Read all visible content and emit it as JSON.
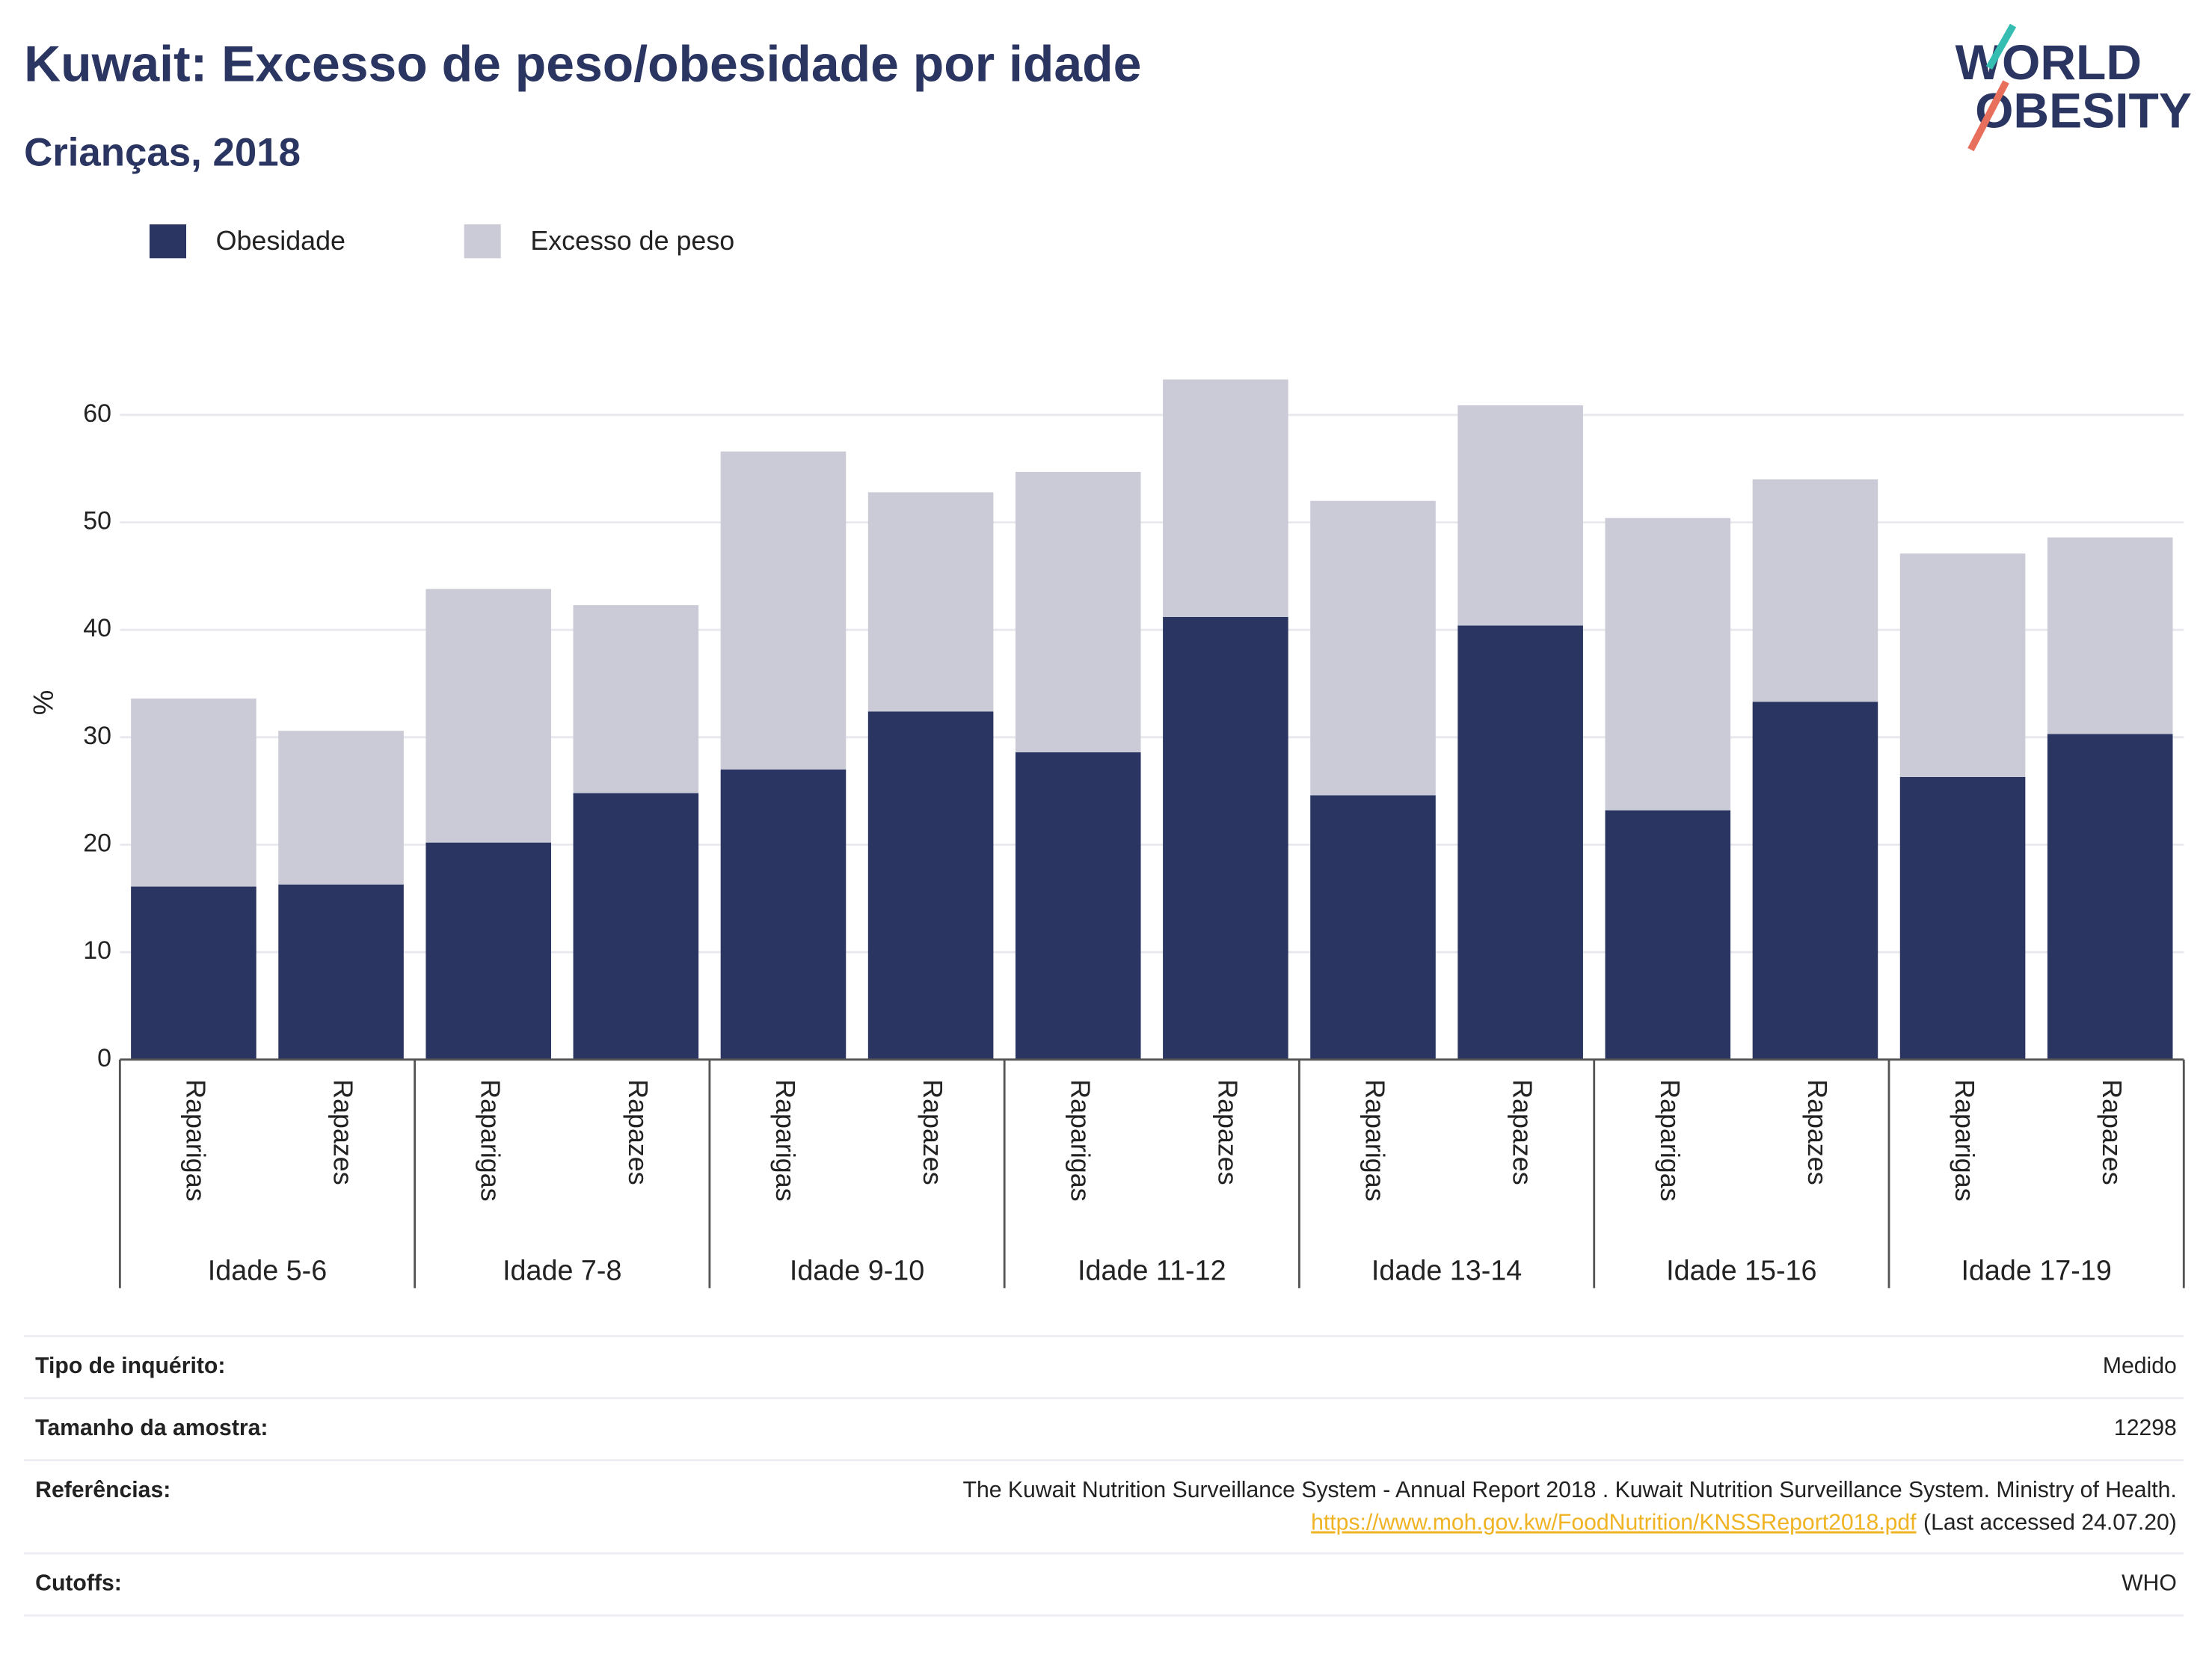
{
  "logo": {
    "line1": "WORLD",
    "line2": "OBESITY"
  },
  "chart_data": {
    "type": "bar",
    "stacked": true,
    "title": "Kuwait: Excesso de peso/obesidade por idade",
    "subtitle": "Crianças, 2018",
    "y_label": "%",
    "categories": [
      "Raparigas",
      "Rapazes",
      "Raparigas",
      "Rapazes",
      "Raparigas",
      "Rapazes",
      "Raparigas",
      "Rapazes",
      "Raparigas",
      "Rapazes",
      "Raparigas",
      "Rapazes",
      "Raparigas",
      "Rapazes"
    ],
    "groups": [
      "Idade 5-6",
      "Idade 7-8",
      "Idade 9-10",
      "Idade 11-12",
      "Idade 13-14",
      "Idade 15-16",
      "Idade 17-19"
    ],
    "series": [
      {
        "name": "Obesidade",
        "color": "#2a3561",
        "values": [
          16.1,
          16.3,
          20.2,
          24.8,
          27.0,
          32.4,
          28.6,
          41.2,
          24.6,
          40.4,
          23.2,
          33.3,
          26.3,
          30.3
        ]
      },
      {
        "name": "Excesso de peso",
        "color": "#cacbd7",
        "values": [
          17.5,
          14.3,
          23.6,
          17.5,
          29.6,
          20.4,
          26.1,
          22.1,
          27.4,
          20.5,
          27.2,
          20.7,
          20.8,
          18.3
        ]
      }
    ],
    "ylim": [
      0,
      65
    ],
    "yticks": [
      0,
      10,
      20,
      30,
      40,
      50,
      60
    ],
    "grid": true,
    "legend": "top-left"
  },
  "info": [
    {
      "label": "Tipo de inquérito:",
      "value": "Medido"
    },
    {
      "label": "Tamanho da amostra:",
      "value": "12298"
    },
    {
      "label": "Referências:",
      "value": "The Kuwait Nutrition Surveillance System - Annual Report 2018 . Kuwait Nutrition Surveillance System. Ministry of Health.",
      "link": "https://www.moh.gov.kw/FoodNutrition/KNSSReport2018.pdf",
      "note": "(Last accessed 24.07.20)"
    },
    {
      "label": "Cutoffs:",
      "value": "WHO"
    }
  ]
}
